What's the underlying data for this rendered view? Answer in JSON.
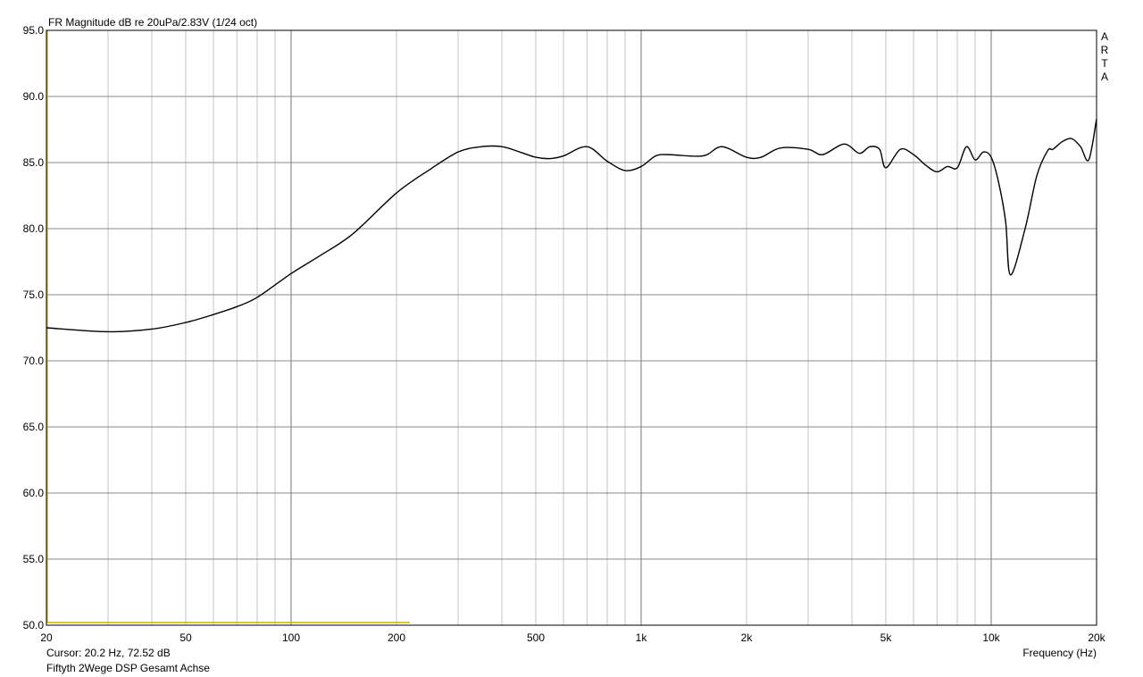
{
  "chart_data": {
    "type": "line",
    "title": "FR Magnitude dB re 20uPa/2.83V (1/24 oct)",
    "xlabel": "Frequency (Hz)",
    "ylabel": "",
    "xscale": "log",
    "xlim": [
      20,
      20000
    ],
    "ylim": [
      50,
      95
    ],
    "grid": true,
    "watermark": "ARTA",
    "x_ticks": [
      20,
      50,
      100,
      200,
      500,
      1000,
      2000,
      5000,
      10000,
      20000
    ],
    "x_tick_labels": [
      "20",
      "50",
      "100",
      "200",
      "500",
      "1k",
      "2k",
      "5k",
      "10k",
      "20k"
    ],
    "y_ticks": [
      50,
      55,
      60,
      65,
      70,
      75,
      80,
      85,
      90,
      95
    ],
    "y_tick_labels": [
      "50.0",
      "55.0",
      "60.0",
      "65.0",
      "70.0",
      "75.0",
      "80.0",
      "85.0",
      "90.0",
      "95.0"
    ],
    "cursor_text": "Cursor: 20.2 Hz, 72.52 dB",
    "measurement_name": "Fiftyth 2Wege DSP Gesamt Achse",
    "colors": {
      "curve": "#000000",
      "cursor": "#c8b400",
      "grid": "#a0a0a0"
    },
    "series": [
      {
        "x": [
          20,
          30,
          40,
          50,
          60,
          70,
          80,
          100,
          120,
          150,
          200,
          250,
          300,
          350,
          400,
          450,
          500,
          550,
          600,
          700,
          800,
          900,
          1000,
          1100,
          1200,
          1500,
          1700,
          2000,
          2200,
          2500,
          3000,
          3300,
          3800,
          4200,
          4500,
          4800,
          5000,
          5500,
          6000,
          6500,
          7000,
          7500,
          8000,
          8500,
          9000,
          9500,
          10000,
          10500,
          11000,
          11350,
          12500,
          13500,
          14500,
          15000,
          16000,
          17000,
          18000,
          19000,
          20000
        ],
        "y": [
          72.5,
          72.2,
          72.4,
          72.9,
          73.5,
          74.1,
          74.8,
          76.6,
          77.9,
          79.6,
          82.7,
          84.5,
          85.8,
          86.2,
          86.2,
          85.8,
          85.4,
          85.3,
          85.5,
          86.2,
          85.1,
          84.4,
          84.7,
          85.5,
          85.6,
          85.5,
          86.2,
          85.4,
          85.4,
          86.1,
          86.0,
          85.6,
          86.4,
          85.7,
          86.2,
          86.0,
          84.6,
          86.0,
          85.6,
          84.8,
          84.3,
          84.7,
          84.6,
          86.2,
          85.2,
          85.8,
          85.4,
          83.5,
          80.5,
          76.5,
          80.0,
          84.0,
          85.9,
          86.0,
          86.6,
          86.8,
          86.2,
          85.2,
          88.3
        ]
      }
    ]
  }
}
